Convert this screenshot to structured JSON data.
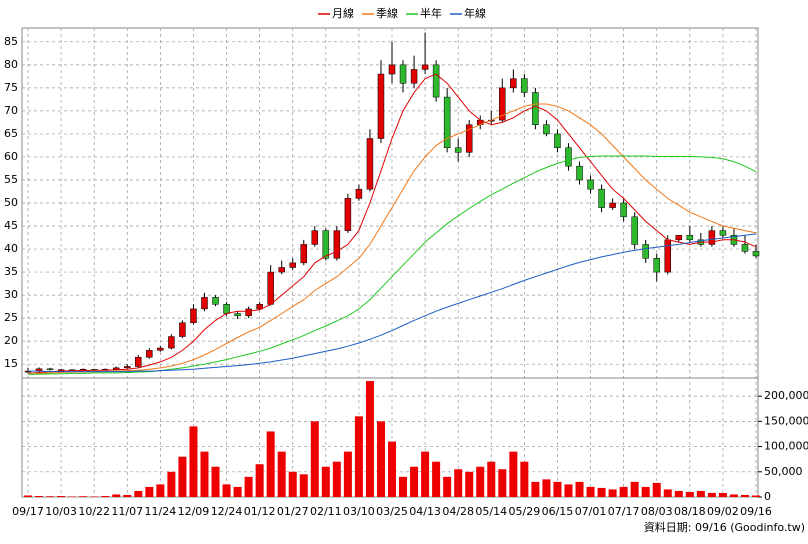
{
  "chart_data": {
    "type": "candlestick",
    "categories": [
      "09/17",
      null,
      null,
      "10/03",
      null,
      null,
      "10/22",
      null,
      null,
      "11/07",
      null,
      null,
      "11/24",
      null,
      null,
      "12/09",
      null,
      null,
      "12/24",
      null,
      null,
      "01/12",
      null,
      null,
      "01/27",
      null,
      null,
      "02/11",
      null,
      null,
      "03/10",
      null,
      null,
      "03/25",
      null,
      null,
      "04/13",
      null,
      null,
      "04/28",
      null,
      null,
      "05/14",
      null,
      null,
      "05/29",
      null,
      null,
      "06/15",
      null,
      null,
      "07/01",
      null,
      null,
      "07/17",
      null,
      null,
      "08/03",
      null,
      null,
      "08/18",
      null,
      null,
      "09/02",
      null,
      null,
      "09/16"
    ],
    "candles": {
      "open": [
        13.3,
        13.5,
        14,
        13.8,
        13.8,
        13.6,
        13.9,
        13.7,
        13.9,
        14.2,
        14.5,
        16.5,
        18,
        18.5,
        21,
        24,
        27,
        29.5,
        28,
        26,
        25.5,
        27,
        28,
        35,
        36,
        37,
        41,
        44,
        38,
        44,
        51,
        53,
        64,
        78,
        80,
        76,
        79,
        80,
        73,
        62,
        61,
        67,
        68,
        68,
        75,
        77,
        74,
        67,
        65,
        62,
        58,
        55,
        53,
        49,
        50,
        47,
        41,
        38,
        35,
        42,
        43,
        42,
        41,
        44,
        43,
        41,
        39.5
      ],
      "high": [
        14.2,
        14.3,
        14.2,
        14,
        13.9,
        14.1,
        14,
        14.1,
        14.5,
        15,
        17,
        18.5,
        19,
        21.5,
        24.5,
        28,
        30.5,
        30,
        28.5,
        26.5,
        27.5,
        28.5,
        36.5,
        37.5,
        38,
        42,
        45,
        44.5,
        45,
        52,
        54,
        66,
        81,
        85,
        81,
        82,
        87,
        81,
        75,
        64,
        68,
        69,
        70,
        77,
        79,
        78,
        75,
        68,
        66,
        63,
        59,
        56,
        54,
        51,
        51,
        48,
        42,
        39,
        43,
        43,
        45,
        43.5,
        45,
        45,
        44.5,
        43,
        41
      ],
      "low": [
        13,
        13.3,
        13.6,
        13.6,
        13.4,
        13.5,
        13.6,
        13.6,
        13.7,
        14,
        14.3,
        16.2,
        17.7,
        18.2,
        20.7,
        23.6,
        26.5,
        27.6,
        25.5,
        24.8,
        25,
        26.7,
        27.7,
        34.5,
        35.5,
        36.5,
        40.5,
        37.5,
        37.5,
        43.5,
        50.5,
        52.5,
        63,
        76,
        74,
        75,
        78,
        72,
        61,
        59,
        60,
        66,
        67,
        67.5,
        74,
        73,
        66,
        64.5,
        61,
        57,
        54,
        52,
        48,
        48.5,
        46,
        40,
        37,
        33,
        34.5,
        41.5,
        41.5,
        40.5,
        40.5,
        42.5,
        40.5,
        39,
        38
      ],
      "close": [
        13.5,
        14,
        13.8,
        13.8,
        13.6,
        13.9,
        13.7,
        13.9,
        14.2,
        14.5,
        16.5,
        18,
        18.5,
        21,
        24,
        27,
        29.5,
        28,
        26,
        25.5,
        27,
        28,
        35,
        36,
        37,
        41,
        44,
        38,
        44,
        51,
        53,
        64,
        78,
        80,
        76,
        79,
        80,
        73,
        62,
        61,
        67,
        68,
        68,
        75,
        77,
        74,
        67,
        65,
        62,
        58,
        55,
        53,
        49,
        50,
        47,
        41,
        38,
        35,
        42,
        43,
        42,
        41,
        44,
        43,
        41,
        39.5,
        38.5
      ]
    },
    "up_color": "#e00000",
    "down_color": "#2db82d",
    "series": [
      {
        "name": "月線",
        "color": "#e00000",
        "values": [
          13,
          13.2,
          13.4,
          13.5,
          13.6,
          13.6,
          13.7,
          13.7,
          13.8,
          13.9,
          14.2,
          14.8,
          15.5,
          16.5,
          18,
          20,
          22.5,
          24.5,
          26,
          26.5,
          26.5,
          26.8,
          28,
          30,
          32,
          34,
          37,
          38.5,
          39.5,
          41,
          44,
          50,
          57,
          64,
          70,
          74,
          77,
          78,
          76,
          73,
          70,
          68,
          67,
          67.5,
          68.5,
          70,
          71,
          70,
          68,
          65,
          62,
          59,
          56,
          53,
          51,
          48.5,
          46,
          44,
          42,
          41.5,
          41,
          41.5,
          41.5,
          42,
          42,
          41.5,
          40.5
        ]
      },
      {
        "name": "季線",
        "color": "#f07818",
        "values": [
          13,
          13,
          13.1,
          13.2,
          13.3,
          13.3,
          13.4,
          13.4,
          13.5,
          13.6,
          13.7,
          13.9,
          14.2,
          14.6,
          15.2,
          16,
          17,
          18.2,
          19.5,
          20.8,
          22,
          23,
          24.5,
          26,
          27.5,
          29,
          31,
          32.5,
          34,
          36,
          38,
          41,
          45,
          49,
          53,
          57,
          60,
          62.5,
          64,
          65,
          66,
          67,
          68,
          69,
          70,
          71,
          71.5,
          71.5,
          71,
          70,
          68.5,
          67,
          65,
          62.5,
          60,
          57.5,
          55,
          53,
          51,
          49.5,
          48,
          47,
          46,
          45,
          44.5,
          44,
          43.5
        ]
      },
      {
        "name": "半年",
        "color": "#20c820",
        "values": [
          12.8,
          12.8,
          12.9,
          12.9,
          13,
          13,
          13.1,
          13.1,
          13.1,
          13.2,
          13.3,
          13.4,
          13.6,
          13.9,
          14.2,
          14.6,
          15,
          15.5,
          16,
          16.6,
          17.2,
          17.8,
          18.5,
          19.4,
          20.3,
          21.2,
          22.3,
          23.3,
          24.4,
          25.5,
          27,
          29,
          31.5,
          34,
          36.5,
          39,
          41.5,
          43.5,
          45.5,
          47.2,
          48.8,
          50.3,
          51.8,
          53,
          54.3,
          55.5,
          56.7,
          57.7,
          58.6,
          59.3,
          59.9,
          60.1,
          60.2,
          60.2,
          60.2,
          60.2,
          60.2,
          60.1,
          60.1,
          60.1,
          60.1,
          60,
          59.9,
          59.6,
          59,
          58,
          56.8
        ]
      },
      {
        "name": "年線",
        "color": "#1c5cc8",
        "values": [
          13.5,
          13.5,
          13.4,
          13.4,
          13.4,
          13.4,
          13.4,
          13.4,
          13.4,
          13.4,
          13.5,
          13.5,
          13.6,
          13.7,
          13.8,
          13.9,
          14.1,
          14.3,
          14.5,
          14.7,
          14.9,
          15.2,
          15.5,
          15.9,
          16.3,
          16.8,
          17.3,
          17.8,
          18.3,
          18.9,
          19.6,
          20.4,
          21.3,
          22.3,
          23.4,
          24.5,
          25.5,
          26.5,
          27.4,
          28.2,
          29,
          29.8,
          30.6,
          31.4,
          32.3,
          33.2,
          34,
          34.8,
          35.6,
          36.4,
          37.1,
          37.7,
          38.3,
          38.8,
          39.3,
          39.7,
          40.1,
          40.4,
          40.7,
          41,
          41.4,
          41.8,
          42.1,
          42.4,
          42.7,
          43,
          43.3
        ]
      }
    ],
    "ylim": [
      12,
      88
    ],
    "yticks": [
      15,
      20,
      25,
      30,
      35,
      40,
      45,
      50,
      55,
      60,
      65,
      70,
      75,
      80,
      85
    ],
    "volume": {
      "color": "#ee0000",
      "values": [
        3000,
        2000,
        1500,
        2000,
        1000,
        1500,
        1000,
        2000,
        5000,
        4000,
        12000,
        20000,
        25000,
        50000,
        80000,
        140000,
        90000,
        60000,
        25000,
        20000,
        40000,
        65000,
        130000,
        90000,
        50000,
        45000,
        150000,
        60000,
        70000,
        90000,
        160000,
        230000,
        150000,
        110000,
        40000,
        60000,
        90000,
        70000,
        40000,
        55000,
        50000,
        60000,
        70000,
        55000,
        90000,
        70000,
        30000,
        35000,
        30000,
        25000,
        30000,
        20000,
        18000,
        15000,
        20000,
        30000,
        20000,
        28000,
        15000,
        12000,
        10000,
        12000,
        8000,
        8000,
        5000,
        4000,
        3000
      ],
      "ylim": [
        0,
        236000
      ],
      "yticks": [
        0,
        {
          "value": 50000,
          "label": "50,000"
        },
        {
          "value": 100000,
          "label": "100,000"
        },
        {
          "value": 150000,
          "label": "150,000"
        },
        {
          "value": 200000,
          "label": "200,000"
        }
      ]
    },
    "grid": true,
    "footer": "資料日期: 09/16 (Goodinfo.tw)"
  }
}
